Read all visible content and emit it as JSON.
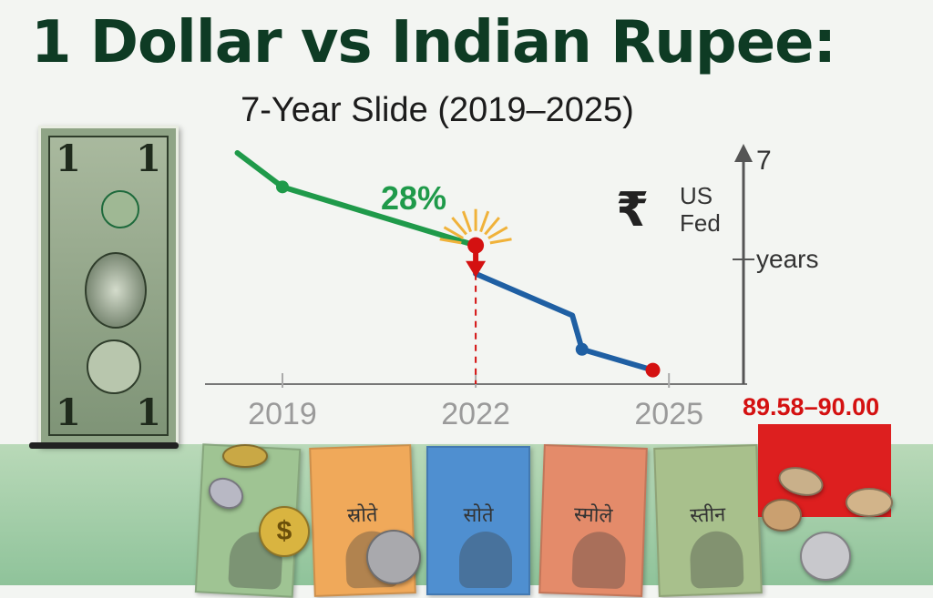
{
  "title": "1 Dollar vs Indian Rupee:",
  "subtitle": "7-Year Slide (2019–2025)",
  "chart_data": {
    "type": "line",
    "title": "1 Dollar vs Indian Rupee:",
    "subtitle": "7-Year Slide (2019–2025)",
    "x_tick_labels": [
      "2019",
      "2022",
      "2025"
    ],
    "series": [
      {
        "color": "#1f9a4a",
        "points": [
          [
            2018.3,
            0
          ],
          [
            2019,
            0.9
          ],
          [
            2022,
            2.45
          ]
        ]
      },
      {
        "color": "#1f5fa3",
        "points": [
          [
            2022,
            3.2
          ],
          [
            2023.5,
            4.3
          ],
          [
            2023.65,
            5.2
          ],
          [
            2024.75,
            5.75
          ]
        ]
      }
    ],
    "drop_marker": {
      "x": 2022,
      "color": "#d41111"
    },
    "end_marker": {
      "x": 2024.75,
      "color": "#d41111"
    },
    "annotations": {
      "percent_label": "28%",
      "fed_label_line1": "US",
      "fed_label_line2": "Fed",
      "right_axis_top": "7",
      "right_axis_mid": "years",
      "value_callout": "89.58–90.00"
    },
    "colors": {
      "before": "#1f9a4a",
      "after": "#1f5fa3",
      "highlight": "#d41111",
      "title": "#0e3b24"
    },
    "axes": {
      "right_axis_arrow": true,
      "x_axis_line": true,
      "grid": false
    }
  },
  "decor": {
    "bill_denomination": "1",
    "note_scripts": [
      "स्रोते",
      "सोते",
      "स्मोले",
      "स्तीन"
    ],
    "coin_symbol": "$",
    "rupee_symbol": "₹"
  }
}
